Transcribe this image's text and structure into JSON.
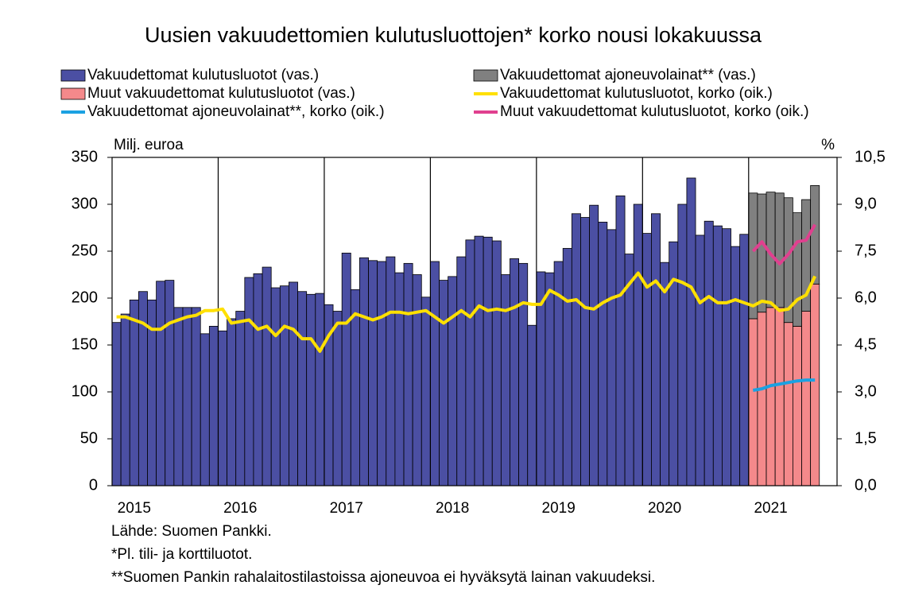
{
  "chart_data": {
    "type": "bar",
    "title": "Uusien vakuudettomien kulutusluottojen* korko nousi lokakuussa",
    "y_label": "Milj. euroa",
    "y2_label": "%",
    "legend": "top",
    "stacked": true,
    "categories": [
      null,
      null,
      "2015",
      null,
      null,
      null,
      null,
      null,
      null,
      null,
      null,
      null,
      null,
      null,
      "2016",
      null,
      null,
      null,
      null,
      null,
      null,
      null,
      null,
      null,
      null,
      null,
      "2017",
      null,
      null,
      null,
      null,
      null,
      null,
      null,
      null,
      null,
      null,
      null,
      "2018",
      null,
      null,
      null,
      null,
      null,
      null,
      null,
      null,
      null,
      null,
      null,
      "2019",
      null,
      null,
      null,
      null,
      null,
      null,
      null,
      null,
      null,
      null,
      null,
      "2020",
      null,
      null,
      null,
      null,
      null,
      null,
      null,
      null,
      null,
      null,
      null,
      "2021",
      null,
      null,
      null,
      null,
      null
    ],
    "ylim": [
      0,
      350
    ],
    "yticks": [
      0,
      50,
      100,
      150,
      200,
      250,
      300,
      350
    ],
    "y2lim": [
      0,
      10.5
    ],
    "y2ticks": [
      {
        "value": 0,
        "label": "0,0"
      },
      {
        "value": 1.5,
        "label": "1,5"
      },
      {
        "value": 3,
        "label": "3,0"
      },
      {
        "value": 4.5,
        "label": "4,5"
      },
      {
        "value": 6,
        "label": "6,0"
      },
      {
        "value": 7.5,
        "label": "7,5"
      },
      {
        "value": 9,
        "label": "9,0"
      },
      {
        "value": 10.5,
        "label": "10,5"
      }
    ],
    "series": [
      {
        "name": "Vakuudettomat kulutusluotot (vas.)",
        "kind": "bar",
        "color": "#4b4fa3",
        "values": [
          174,
          183,
          198,
          207,
          198,
          218,
          219,
          190,
          190,
          190,
          162,
          170,
          165,
          178,
          186,
          222,
          226,
          233,
          211,
          213,
          217,
          207,
          204,
          205,
          193,
          186,
          248,
          209,
          243,
          240,
          239,
          244,
          227,
          237,
          225,
          201,
          239,
          219,
          223,
          244,
          262,
          266,
          265,
          261,
          225,
          242,
          237,
          171,
          228,
          227,
          239,
          253,
          290,
          286,
          299,
          281,
          273,
          309,
          247,
          300,
          269,
          290,
          238,
          260,
          300,
          328,
          267,
          282,
          277,
          274,
          255,
          268,
          null,
          null,
          null,
          null,
          null,
          null,
          null,
          null
        ]
      },
      {
        "name": "Vakuudettomat ajoneuvolainat** (vas.)",
        "kind": "bar",
        "color": "#808080",
        "values": [
          null,
          null,
          null,
          null,
          null,
          null,
          null,
          null,
          null,
          null,
          null,
          null,
          null,
          null,
          null,
          null,
          null,
          null,
          null,
          null,
          null,
          null,
          null,
          null,
          null,
          null,
          null,
          null,
          null,
          null,
          null,
          null,
          null,
          null,
          null,
          null,
          null,
          null,
          null,
          null,
          null,
          null,
          null,
          null,
          null,
          null,
          null,
          null,
          null,
          null,
          null,
          null,
          null,
          null,
          null,
          null,
          null,
          null,
          null,
          null,
          null,
          null,
          null,
          null,
          null,
          null,
          null,
          null,
          null,
          null,
          null,
          null,
          134,
          126,
          123,
          122,
          133,
          121,
          119,
          105
        ]
      },
      {
        "name": "Muut vakuudettomat kulutusluotot (vas.)",
        "kind": "bar",
        "color": "#f4898b",
        "values": [
          null,
          null,
          null,
          null,
          null,
          null,
          null,
          null,
          null,
          null,
          null,
          null,
          null,
          null,
          null,
          null,
          null,
          null,
          null,
          null,
          null,
          null,
          null,
          null,
          null,
          null,
          null,
          null,
          null,
          null,
          null,
          null,
          null,
          null,
          null,
          null,
          null,
          null,
          null,
          null,
          null,
          null,
          null,
          null,
          null,
          null,
          null,
          null,
          null,
          null,
          null,
          null,
          null,
          null,
          null,
          null,
          null,
          null,
          null,
          null,
          null,
          null,
          null,
          null,
          null,
          null,
          null,
          null,
          null,
          null,
          null,
          null,
          178,
          185,
          190,
          190,
          174,
          170,
          186,
          215
        ]
      },
      {
        "name": "Vakuudettomat kulutusluotot, korko (oik.)",
        "kind": "line",
        "axis": "y2",
        "color": "#ffe000",
        "values": [
          5.4,
          5.4,
          5.3,
          5.2,
          5.0,
          5.0,
          5.2,
          5.3,
          5.4,
          5.45,
          5.6,
          5.6,
          5.65,
          5.2,
          5.25,
          5.3,
          5.0,
          5.1,
          4.8,
          5.1,
          5.0,
          4.7,
          4.7,
          4.3,
          4.8,
          5.2,
          5.2,
          5.5,
          5.4,
          5.3,
          5.4,
          5.55,
          5.55,
          5.5,
          5.55,
          5.6,
          5.4,
          5.2,
          5.4,
          5.6,
          5.4,
          5.75,
          5.6,
          5.65,
          5.6,
          5.7,
          5.85,
          5.8,
          5.8,
          6.25,
          6.1,
          5.9,
          5.95,
          5.7,
          5.65,
          5.85,
          6.0,
          6.1,
          6.45,
          6.8,
          6.35,
          6.55,
          6.2,
          6.6,
          6.5,
          6.35,
          5.85,
          6.05,
          5.85,
          5.85,
          5.95,
          5.85,
          5.75,
          5.9,
          5.85,
          5.6,
          5.65,
          5.95,
          6.1,
          6.7
        ]
      },
      {
        "name": "Vakuudettomat ajoneuvolainat**, korko (oik.)",
        "kind": "line",
        "axis": "y2",
        "color": "#1ba1e2",
        "values": [
          null,
          null,
          null,
          null,
          null,
          null,
          null,
          null,
          null,
          null,
          null,
          null,
          null,
          null,
          null,
          null,
          null,
          null,
          null,
          null,
          null,
          null,
          null,
          null,
          null,
          null,
          null,
          null,
          null,
          null,
          null,
          null,
          null,
          null,
          null,
          null,
          null,
          null,
          null,
          null,
          null,
          null,
          null,
          null,
          null,
          null,
          null,
          null,
          null,
          null,
          null,
          null,
          null,
          null,
          null,
          null,
          null,
          null,
          null,
          null,
          null,
          null,
          null,
          null,
          null,
          null,
          null,
          null,
          null,
          null,
          null,
          null,
          3.05,
          3.1,
          3.2,
          3.25,
          3.3,
          3.35,
          3.38,
          3.38
        ]
      },
      {
        "name": "Muut vakuudettomat kulutusluotot, korko (oik.)",
        "kind": "line",
        "axis": "y2",
        "color": "#e0408f",
        "values": [
          null,
          null,
          null,
          null,
          null,
          null,
          null,
          null,
          null,
          null,
          null,
          null,
          null,
          null,
          null,
          null,
          null,
          null,
          null,
          null,
          null,
          null,
          null,
          null,
          null,
          null,
          null,
          null,
          null,
          null,
          null,
          null,
          null,
          null,
          null,
          null,
          null,
          null,
          null,
          null,
          null,
          null,
          null,
          null,
          null,
          null,
          null,
          null,
          null,
          null,
          null,
          null,
          null,
          null,
          null,
          null,
          null,
          null,
          null,
          null,
          null,
          null,
          null,
          null,
          null,
          null,
          null,
          null,
          null,
          null,
          null,
          null,
          7.5,
          7.8,
          7.4,
          7.1,
          7.4,
          7.8,
          7.85,
          8.35
        ]
      }
    ],
    "notes": [
      "Lähde: Suomen Pankki.",
      "*Pl. tili- ja korttiluotot.",
      "**Suomen Pankin rahalaitostilastoissa ajoneuvoa ei hyväksytä lainan vakuudeksi."
    ]
  }
}
